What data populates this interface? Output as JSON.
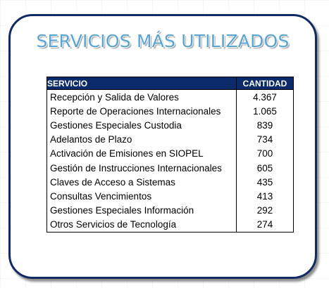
{
  "title": "SERVICIOS MÁS UTILIZADOS",
  "colors": {
    "border": "#102a63",
    "title": "#5aa4d4",
    "header_bg": "#0b2a6a",
    "header_text": "#ffffff"
  },
  "table": {
    "headers": [
      "SERVICIO",
      "CANTIDAD"
    ],
    "rows": [
      {
        "servicio": "Recepción y Salida de Valores",
        "cantidad": "4.367"
      },
      {
        "servicio": "Reporte de Operaciones Internacionales",
        "cantidad": "1.065"
      },
      {
        "servicio": "Gestiones Especiales Custodia",
        "cantidad": "839"
      },
      {
        "servicio": "Adelantos de Plazo",
        "cantidad": "734"
      },
      {
        "servicio": "Activación de Emisiones en SIOPEL",
        "cantidad": "700"
      },
      {
        "servicio": "Gestión de Instrucciones Internacionales",
        "cantidad": "605"
      },
      {
        "servicio": "Claves de Acceso a Sistemas",
        "cantidad": "435"
      },
      {
        "servicio": "Consultas Vencimientos",
        "cantidad": "413"
      },
      {
        "servicio": "Gestiones Especiales Información",
        "cantidad": "292"
      },
      {
        "servicio": "Otros Servicios de Tecnología",
        "cantidad": "274"
      }
    ]
  }
}
